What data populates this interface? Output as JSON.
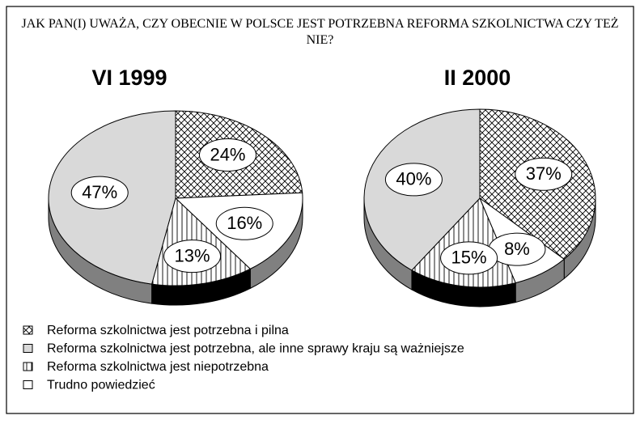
{
  "title": "JAK PAN(I) UWAŻA, CZY OBECNIE W POLSCE JEST POTRZEBNA REFORMA SZKOLNICTWA CZY TEŻ NIE?",
  "categories": [
    "Reforma szkolnictwa jest potrzebna i pilna",
    "Reforma szkolnictwa jest potrzebna, ale inne sprawy kraju są ważniejsze",
    "Reforma szkolnictwa jest niepotrzebna",
    "Trudno powiedzieć"
  ],
  "styles": [
    {
      "pattern": "crosshatch",
      "color": "#ffffff",
      "side": "#808080"
    },
    {
      "pattern": "solid",
      "color": "#d9d9d9",
      "side": "#808080"
    },
    {
      "pattern": "vertical",
      "color": "#ffffff",
      "side": "#000000"
    },
    {
      "pattern": "solid",
      "color": "#ffffff",
      "side": "#808080"
    }
  ],
  "slice_order": [
    0,
    3,
    2,
    1
  ],
  "chart_data": [
    {
      "type": "pie",
      "title": "VI 1999",
      "values": [
        24,
        47,
        13,
        16
      ],
      "value_labels": [
        "24%",
        "47%",
        "13%",
        "16%"
      ]
    },
    {
      "type": "pie",
      "title": "II 2000",
      "values": [
        37,
        40,
        15,
        8
      ],
      "value_labels": [
        "37%",
        "40%",
        "15%",
        "8%"
      ]
    }
  ]
}
